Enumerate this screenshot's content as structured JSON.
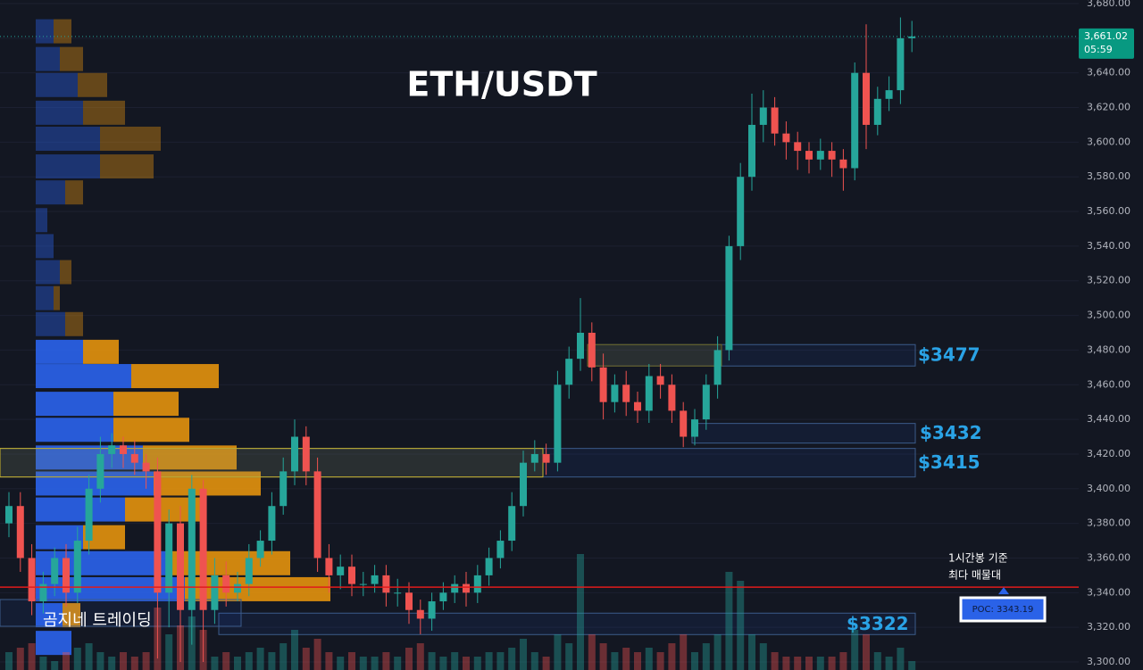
{
  "chart_data": {
    "type": "candlestick",
    "title": "ETH/USDT",
    "watermark": "곰지네 트레이딩",
    "annotation": [
      "1시간봉 기준",
      "최다 매물대"
    ],
    "up_color": "#26a69a",
    "down_color": "#ef5350",
    "grid": true,
    "ylim": [
      3300,
      3680
    ],
    "yticks": [
      {
        "value": 3300,
        "label": "3,300.00"
      },
      {
        "value": 3320,
        "label": "3,320.00"
      },
      {
        "value": 3340,
        "label": "3,340.00"
      },
      {
        "value": 3360,
        "label": "3,360.00"
      },
      {
        "value": 3380,
        "label": "3,380.00"
      },
      {
        "value": 3400,
        "label": "3,400.00"
      },
      {
        "value": 3420,
        "label": "3,420.00"
      },
      {
        "value": 3440,
        "label": "3,440.00"
      },
      {
        "value": 3460,
        "label": "3,460.00"
      },
      {
        "value": 3480,
        "label": "3,480.00"
      },
      {
        "value": 3500,
        "label": "3,500.00"
      },
      {
        "value": 3520,
        "label": "3,520.00"
      },
      {
        "value": 3540,
        "label": "3,540.00"
      },
      {
        "value": 3560,
        "label": "3,560.00"
      },
      {
        "value": 3580,
        "label": "3,580.00"
      },
      {
        "value": 3600,
        "label": "3,600.00"
      },
      {
        "value": 3620,
        "label": "3,620.00"
      },
      {
        "value": 3640,
        "label": "3,640.00"
      },
      {
        "value": 3660,
        "label": "3,660.00"
      },
      {
        "value": 3680,
        "label": "3,680.00"
      }
    ],
    "open": [
      3380,
      3390,
      3360,
      3335,
      3345,
      3360,
      3340,
      3370,
      3400,
      3420,
      3425,
      3420,
      3415,
      3410,
      3340,
      3380,
      3330,
      3400,
      3330,
      3350,
      3340,
      3345,
      3360,
      3370,
      3390,
      3410,
      3430,
      3410,
      3360,
      3350,
      3355,
      3345,
      3345,
      3350,
      3340,
      3340,
      3330,
      3325,
      3335,
      3340,
      3345,
      3340,
      3350,
      3360,
      3370,
      3390,
      3415,
      3420,
      3415,
      3460,
      3475,
      3490,
      3470,
      3450,
      3460,
      3450,
      3445,
      3465,
      3460,
      3445,
      3430,
      3440,
      3460,
      3480,
      3540,
      3580,
      3610,
      3620,
      3605,
      3600,
      3595,
      3590,
      3595,
      3590,
      3585,
      3640,
      3610,
      3625,
      3630,
      3660
    ],
    "high": [
      3398,
      3398,
      3368,
      3352,
      3366,
      3368,
      3378,
      3408,
      3430,
      3432,
      3430,
      3428,
      3420,
      3418,
      3388,
      3390,
      3408,
      3405,
      3360,
      3358,
      3352,
      3368,
      3376,
      3398,
      3418,
      3440,
      3436,
      3418,
      3368,
      3362,
      3362,
      3352,
      3356,
      3356,
      3348,
      3346,
      3336,
      3340,
      3346,
      3350,
      3352,
      3356,
      3366,
      3376,
      3398,
      3422,
      3428,
      3426,
      3468,
      3482,
      3510,
      3496,
      3478,
      3466,
      3468,
      3456,
      3472,
      3472,
      3466,
      3450,
      3446,
      3466,
      3488,
      3546,
      3588,
      3628,
      3630,
      3626,
      3612,
      3606,
      3600,
      3602,
      3600,
      3596,
      3646,
      3668,
      3632,
      3638,
      3672,
      3670
    ],
    "low": [
      3372,
      3352,
      3327,
      3328,
      3338,
      3332,
      3334,
      3362,
      3392,
      3412,
      3412,
      3408,
      3400,
      3302,
      3320,
      3300,
      3310,
      3300,
      3322,
      3332,
      3335,
      3338,
      3355,
      3362,
      3385,
      3402,
      3402,
      3352,
      3340,
      3342,
      3338,
      3338,
      3340,
      3332,
      3332,
      3322,
      3316,
      3318,
      3330,
      3334,
      3332,
      3334,
      3344,
      3354,
      3364,
      3384,
      3410,
      3408,
      3410,
      3452,
      3468,
      3462,
      3440,
      3444,
      3442,
      3438,
      3438,
      3452,
      3438,
      3424,
      3425,
      3434,
      3452,
      3474,
      3532,
      3572,
      3600,
      3598,
      3590,
      3584,
      3582,
      3584,
      3580,
      3572,
      3578,
      3596,
      3604,
      3618,
      3622,
      3652
    ],
    "close": [
      3390,
      3360,
      3335,
      3345,
      3360,
      3340,
      3370,
      3400,
      3420,
      3425,
      3420,
      3415,
      3410,
      3340,
      3380,
      3330,
      3400,
      3330,
      3350,
      3340,
      3345,
      3360,
      3370,
      3390,
      3410,
      3430,
      3410,
      3360,
      3350,
      3355,
      3345,
      3345,
      3350,
      3340,
      3340,
      3330,
      3325,
      3335,
      3340,
      3345,
      3340,
      3350,
      3360,
      3370,
      3390,
      3415,
      3420,
      3415,
      3460,
      3475,
      3490,
      3470,
      3450,
      3460,
      3450,
      3445,
      3465,
      3460,
      3445,
      3430,
      3440,
      3460,
      3480,
      3540,
      3580,
      3610,
      3620,
      3605,
      3600,
      3595,
      3590,
      3595,
      3590,
      3585,
      3640,
      3610,
      3625,
      3630,
      3660,
      3661.02
    ],
    "volume": [
      20,
      25,
      30,
      15,
      10,
      20,
      25,
      30,
      20,
      15,
      20,
      15,
      20,
      70,
      40,
      50,
      60,
      45,
      15,
      20,
      15,
      20,
      25,
      20,
      30,
      45,
      25,
      35,
      20,
      15,
      20,
      15,
      15,
      20,
      15,
      25,
      30,
      20,
      15,
      20,
      15,
      15,
      20,
      20,
      25,
      35,
      20,
      15,
      40,
      30,
      130,
      40,
      30,
      20,
      25,
      20,
      25,
      20,
      30,
      40,
      20,
      30,
      40,
      110,
      100,
      40,
      30,
      20,
      15,
      15,
      15,
      15,
      15,
      20,
      45,
      40,
      20,
      15,
      25,
      10
    ],
    "volume_profile": {
      "levels": [
        3664,
        3648,
        3633,
        3617,
        3602,
        3586,
        3571,
        3555,
        3540,
        3525,
        3510,
        3495,
        3479,
        3465,
        3449,
        3434,
        3418,
        3403,
        3388,
        3372,
        3357,
        3342,
        3327,
        3311
      ],
      "buy": [
        20,
        27,
        47,
        53,
        72,
        72,
        33,
        13,
        20,
        27,
        20,
        33,
        53,
        107,
        87,
        87,
        120,
        132,
        100,
        53,
        147,
        167,
        30,
        40
      ],
      "sell": [
        20,
        26,
        33,
        47,
        68,
        60,
        20,
        0,
        0,
        13,
        7,
        20,
        40,
        98,
        73,
        85,
        105,
        120,
        85,
        47,
        138,
        163,
        20,
        0
      ],
      "value_area": [
        3300,
        3487
      ],
      "buy_color": "#2a62e8",
      "sell_color": "#e0900e"
    },
    "zones": [
      {
        "value": 3477,
        "label": "$3477"
      },
      {
        "value": 3432,
        "label": "$3432"
      },
      {
        "value": 3415,
        "label": "$3415"
      },
      {
        "value": 3322,
        "label": "$3322"
      }
    ],
    "poc": {
      "value": 3343.19,
      "label": "POC: 3343.19"
    },
    "current_price": {
      "value": 3661.02,
      "label": "3,661.02"
    },
    "countdown": "05:59"
  }
}
